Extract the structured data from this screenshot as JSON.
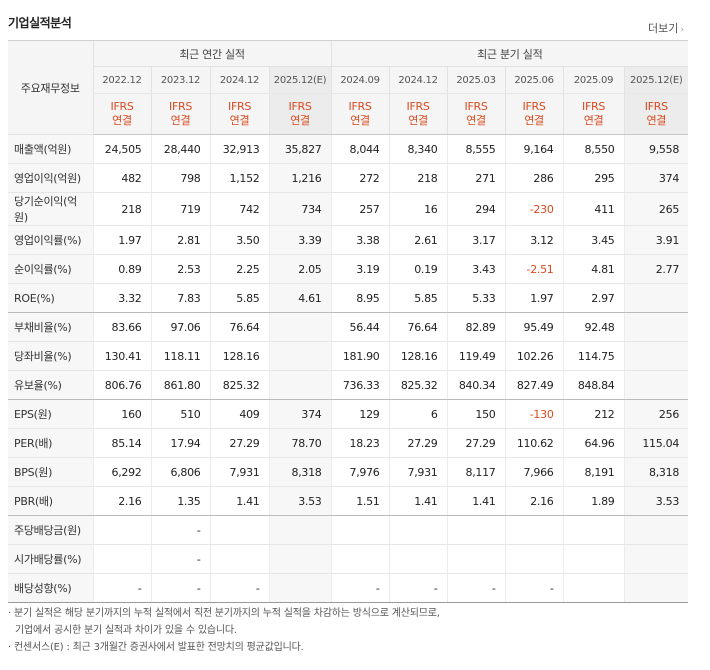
{
  "section_title": "기업실적분석",
  "more_label": "더보기",
  "more_chevron": "›",
  "header": {
    "label": "주요재무정보",
    "annual_group": "최근 연간 실적",
    "quarter_group": "최근 분기 실적",
    "periods": [
      "2022.12",
      "2023.12",
      "2024.12",
      "2025.12(E)",
      "2024.09",
      "2024.12",
      "2025.03",
      "2025.06",
      "2025.09",
      "2025.12(E)"
    ],
    "std_top": "IFRS",
    "std_bottom": "연결"
  },
  "rows": [
    {
      "label": "매출액(억원)",
      "values": [
        "24,505",
        "28,440",
        "32,913",
        "35,827",
        "8,044",
        "8,340",
        "8,555",
        "9,164",
        "8,550",
        "9,558"
      ]
    },
    {
      "label": "영업이익(억원)",
      "values": [
        "482",
        "798",
        "1,152",
        "1,216",
        "272",
        "218",
        "271",
        "286",
        "295",
        "374"
      ]
    },
    {
      "label": "당기순이익(억원)",
      "values": [
        "218",
        "719",
        "742",
        "734",
        "257",
        "16",
        "294",
        "-230",
        "411",
        "265"
      ]
    },
    {
      "label": "영업이익률(%)",
      "values": [
        "1.97",
        "2.81",
        "3.50",
        "3.39",
        "3.38",
        "2.61",
        "3.17",
        "3.12",
        "3.45",
        "3.91"
      ]
    },
    {
      "label": "순이익률(%)",
      "values": [
        "0.89",
        "2.53",
        "2.25",
        "2.05",
        "3.19",
        "0.19",
        "3.43",
        "-2.51",
        "4.81",
        "2.77"
      ]
    },
    {
      "label": "ROE(%)",
      "values": [
        "3.32",
        "7.83",
        "5.85",
        "4.61",
        "8.95",
        "5.85",
        "5.33",
        "1.97",
        "2.97",
        ""
      ]
    },
    {
      "label": "부채비율(%)",
      "values": [
        "83.66",
        "97.06",
        "76.64",
        "",
        "56.44",
        "76.64",
        "82.89",
        "95.49",
        "92.48",
        ""
      ]
    },
    {
      "label": "당좌비율(%)",
      "values": [
        "130.41",
        "118.11",
        "128.16",
        "",
        "181.90",
        "128.16",
        "119.49",
        "102.26",
        "114.75",
        ""
      ]
    },
    {
      "label": "유보율(%)",
      "values": [
        "806.76",
        "861.80",
        "825.32",
        "",
        "736.33",
        "825.32",
        "840.34",
        "827.49",
        "848.84",
        ""
      ]
    },
    {
      "label": "EPS(원)",
      "values": [
        "160",
        "510",
        "409",
        "374",
        "129",
        "6",
        "150",
        "-130",
        "212",
        "256"
      ]
    },
    {
      "label": "PER(배)",
      "values": [
        "85.14",
        "17.94",
        "27.29",
        "78.70",
        "18.23",
        "27.29",
        "27.29",
        "110.62",
        "64.96",
        "115.04"
      ]
    },
    {
      "label": "BPS(원)",
      "values": [
        "6,292",
        "6,806",
        "7,931",
        "8,318",
        "7,976",
        "7,931",
        "8,117",
        "7,966",
        "8,191",
        "8,318"
      ]
    },
    {
      "label": "PBR(배)",
      "values": [
        "2.16",
        "1.35",
        "1.41",
        "3.53",
        "1.51",
        "1.41",
        "1.41",
        "2.16",
        "1.89",
        "3.53"
      ]
    },
    {
      "label": "주당배당금(원)",
      "values": [
        "",
        "-",
        "",
        "",
        "",
        "",
        "",
        "",
        "",
        ""
      ]
    },
    {
      "label": "시가배당률(%)",
      "values": [
        "",
        "-",
        "",
        "",
        "",
        "",
        "",
        "",
        "",
        ""
      ]
    },
    {
      "label": "배당성향(%)",
      "values": [
        "-",
        "-",
        "-",
        "",
        "-",
        "-",
        "-",
        "-",
        "",
        ""
      ]
    }
  ],
  "notes": [
    "· 분기 실적은 해당 분기까지의 누적 실적에서 직전 분기까지의 누적 실적을 차감하는 방식으로 계산되므로,",
    "기업에서 공시한 분기 실적과 차이가 있을 수 있습니다.",
    "· 컨센서스(E) : 최근 3개월간 증권사에서 발표한 전망치의 평균값입니다."
  ],
  "colors": {
    "negative": "#d94a1e",
    "ifrs": "#d94a1e",
    "header_bg": "#f5f5f5"
  }
}
